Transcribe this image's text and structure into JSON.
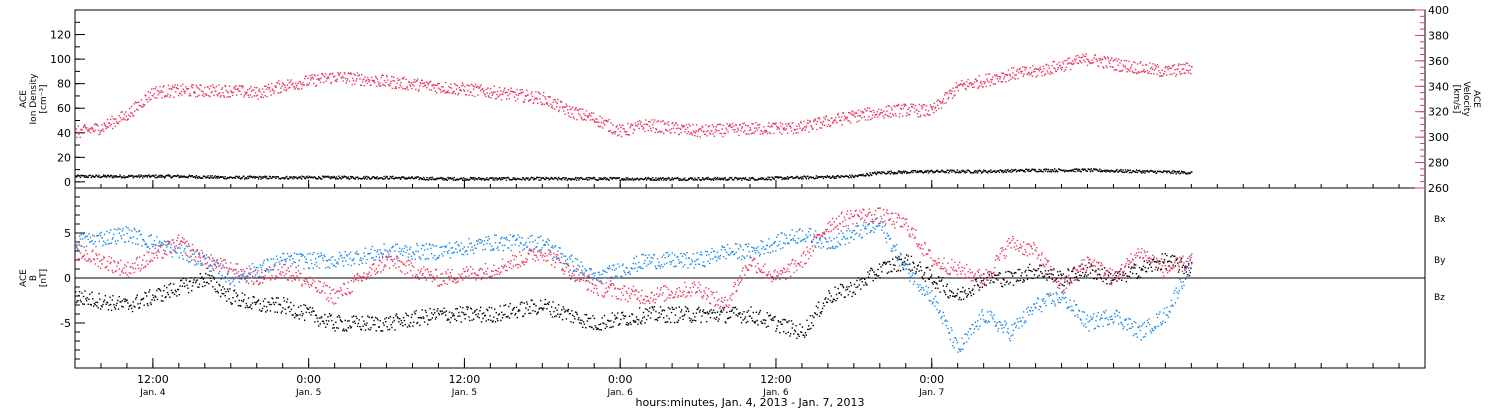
{
  "colors": {
    "black": "#000000",
    "pink": "#e8375f",
    "blue": "#1e88e5"
  },
  "chart_data": [
    {
      "type": "scatter",
      "left_axis": {
        "label_lines": [
          "ACE",
          "Ion Density",
          "[cm⁻³]"
        ],
        "ylim": [
          -5,
          140
        ],
        "ticks": [
          "0",
          "20",
          "40",
          "60",
          "80",
          "100",
          "120"
        ],
        "tick_values": [
          0,
          20,
          40,
          60,
          80,
          100,
          120
        ]
      },
      "right_axis": {
        "label_lines": [
          "ACE",
          "Velocity",
          "[km/s]"
        ],
        "ylim": [
          260,
          400
        ],
        "ticks": [
          "260",
          "280",
          "300",
          "320",
          "340",
          "360",
          "380",
          "400"
        ],
        "tick_values": [
          260,
          280,
          300,
          320,
          340,
          360,
          380,
          400
        ],
        "color": "#e8375f"
      },
      "series": [
        {
          "name": "",
          "axis": "left",
          "color": "#000000",
          "x_hours": [
            0,
            4,
            8,
            12,
            16,
            20,
            24,
            28,
            32,
            36,
            40,
            44,
            48,
            52,
            56,
            60,
            62,
            66,
            70,
            74,
            78,
            82,
            86
          ],
          "values": [
            5,
            5,
            5,
            4,
            4,
            4,
            4,
            3,
            3,
            3,
            3,
            3,
            3,
            3,
            4,
            5,
            8,
            9,
            9,
            10,
            10,
            9,
            8
          ]
        },
        {
          "name": "",
          "axis": "right",
          "color": "#e8375f",
          "x_hours": [
            0,
            2,
            4,
            6,
            8,
            12,
            14,
            16,
            20,
            24,
            28,
            32,
            36,
            38,
            40,
            42,
            44,
            48,
            52,
            56,
            58,
            60,
            62,
            64,
            66,
            68,
            70,
            72,
            74,
            76,
            78,
            80,
            82,
            84,
            86
          ],
          "values": [
            304,
            308,
            318,
            336,
            337,
            337,
            335,
            341,
            348,
            344,
            340,
            336,
            331,
            321,
            315,
            305,
            310,
            305,
            307,
            308,
            313,
            317,
            320,
            322,
            321,
            340,
            345,
            350,
            352,
            357,
            362,
            358,
            355,
            352,
            355
          ]
        }
      ]
    },
    {
      "type": "scatter",
      "left_axis": {
        "label_lines": [
          "ACE",
          "B",
          "[nT]"
        ],
        "ylim": [
          -10,
          10
        ],
        "ticks": [
          "-5",
          "0",
          "5"
        ],
        "tick_values": [
          -5,
          0,
          5
        ]
      },
      "series": [
        {
          "name": "Bx",
          "color": "#000000",
          "x_hours": [
            0,
            4,
            8,
            10,
            12,
            14,
            16,
            20,
            24,
            28,
            32,
            36,
            40,
            44,
            48,
            50,
            52,
            54,
            56,
            58,
            60,
            62,
            64,
            66,
            68,
            70,
            72,
            74,
            76,
            78,
            80,
            82,
            84,
            86
          ],
          "values": [
            -2,
            -3,
            -1,
            0,
            -2,
            -3,
            -3,
            -5,
            -5,
            -4,
            -4,
            -3,
            -5,
            -4,
            -4,
            -4,
            -4,
            -5,
            -6,
            -2,
            -1,
            1,
            2,
            0,
            -2,
            0,
            0,
            1,
            0,
            1,
            0,
            1,
            2,
            1
          ]
        },
        {
          "name": "By",
          "color": "#1e88e5",
          "x_hours": [
            0,
            4,
            8,
            10,
            12,
            14,
            16,
            20,
            24,
            28,
            32,
            36,
            40,
            44,
            48,
            50,
            52,
            54,
            56,
            58,
            60,
            62,
            64,
            66,
            68,
            70,
            72,
            74,
            76,
            78,
            80,
            82,
            84,
            86
          ],
          "values": [
            4,
            5,
            3,
            2,
            0,
            1,
            2,
            2,
            3,
            3,
            4,
            4,
            0,
            2,
            2,
            3,
            3,
            4,
            5,
            4,
            5,
            6,
            1,
            -2,
            -8,
            -4,
            -6,
            -3,
            -2,
            -5,
            -4,
            -6,
            -4,
            2
          ]
        },
        {
          "name": "Bz",
          "color": "#e8375f",
          "x_hours": [
            0,
            4,
            8,
            10,
            12,
            14,
            16,
            20,
            24,
            28,
            32,
            36,
            40,
            44,
            48,
            50,
            52,
            54,
            56,
            58,
            60,
            62,
            64,
            66,
            68,
            70,
            72,
            74,
            76,
            78,
            80,
            82,
            84,
            86
          ],
          "values": [
            3,
            1,
            4,
            2,
            1,
            0,
            1,
            -2,
            2,
            0,
            1,
            3,
            -1,
            -2,
            -1,
            -3,
            2,
            0,
            2,
            6,
            7,
            7,
            6,
            2,
            1,
            0,
            4,
            3,
            -1,
            2,
            0,
            3,
            1,
            2
          ]
        }
      ],
      "legend": {
        "placement": "right",
        "entries": [
          "Bx",
          "By",
          "Bz"
        ]
      }
    }
  ],
  "time_axis": {
    "xlim_hours": [
      0,
      104
    ],
    "xlabel": "hours:minutes, Jan.  4, 2013 - Jan.  7, 2013",
    "major_ticks": [
      {
        "hour": 6,
        "time": "12:00",
        "date": "Jan. 4"
      },
      {
        "hour": 18,
        "time": "0:00",
        "date": "Jan. 5"
      },
      {
        "hour": 30,
        "time": "12:00",
        "date": "Jan. 5"
      },
      {
        "hour": 42,
        "time": "0:00",
        "date": "Jan. 6"
      },
      {
        "hour": 54,
        "time": "12:00",
        "date": "Jan. 6"
      },
      {
        "hour": 66,
        "time": "0:00",
        "date": "Jan. 7"
      }
    ]
  }
}
